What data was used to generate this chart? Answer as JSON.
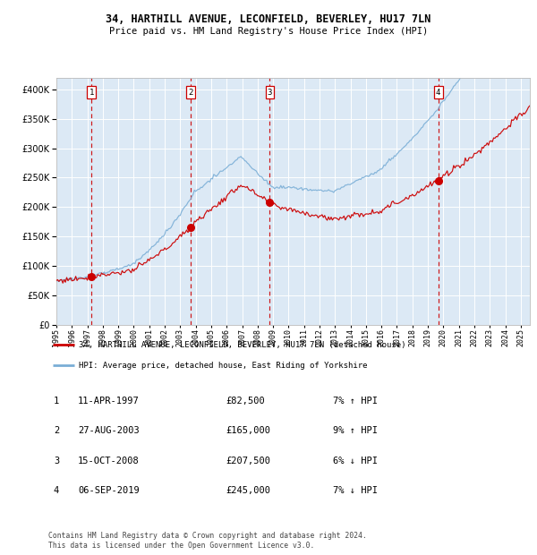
{
  "title1": "34, HARTHILL AVENUE, LECONFIELD, BEVERLEY, HU17 7LN",
  "title2": "Price paid vs. HM Land Registry's House Price Index (HPI)",
  "plot_bg": "#dce9f5",
  "grid_color": "#ffffff",
  "ylim": [
    0,
    420000
  ],
  "yticks": [
    0,
    50000,
    100000,
    150000,
    200000,
    250000,
    300000,
    350000,
    400000
  ],
  "xlim_start": 1995.0,
  "xlim_end": 2025.6,
  "sale_times": [
    1997.28,
    2003.65,
    2008.79,
    2019.67
  ],
  "sale_prices": [
    82500,
    165000,
    207500,
    245000
  ],
  "sale_labels": [
    "1",
    "2",
    "3",
    "4"
  ],
  "legend_red": "34, HARTHILL AVENUE, LECONFIELD, BEVERLEY, HU17 7LN (detached house)",
  "legend_blue": "HPI: Average price, detached house, East Riding of Yorkshire",
  "table_rows": [
    [
      "1",
      "11-APR-1997",
      "£82,500",
      "7% ↑ HPI"
    ],
    [
      "2",
      "27-AUG-2003",
      "£165,000",
      "9% ↑ HPI"
    ],
    [
      "3",
      "15-OCT-2008",
      "£207,500",
      "6% ↓ HPI"
    ],
    [
      "4",
      "06-SEP-2019",
      "£245,000",
      "7% ↓ HPI"
    ]
  ],
  "footnote": "Contains HM Land Registry data © Crown copyright and database right 2024.\nThis data is licensed under the Open Government Licence v3.0.",
  "red_vline_color": "#cc0000",
  "red_line_color": "#cc0000",
  "blue_line_color": "#7aaed6"
}
